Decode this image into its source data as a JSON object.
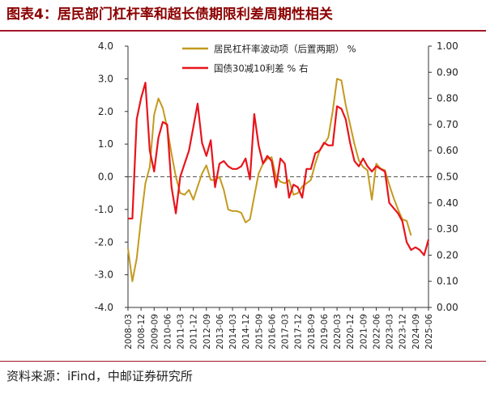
{
  "header": {
    "title": "图表4：居民部门杠杆率和超长债期限利差周期性相关"
  },
  "footer": {
    "source": "资料来源：iFind，中邮证券研究所"
  },
  "colors": {
    "gold": "#c49a1e",
    "red": "#e8141c",
    "brand": "#8b0000"
  },
  "chart_data": {
    "type": "line",
    "title": "图表4：居民部门杠杆率和超长债期限利差周期性相关",
    "xlabel": "",
    "ylabel": "",
    "x_tick_labels": [
      "2008-03",
      "2008-12",
      "2009-09",
      "2010-06",
      "2011-03",
      "2011-12",
      "2012-09",
      "2013-06",
      "2014-03",
      "2014-12",
      "2015-09",
      "2016-06",
      "2017-03",
      "2017-12",
      "2018-09",
      "2019-06",
      "2020-03",
      "2020-12",
      "2021-09",
      "2022-06",
      "2023-03",
      "2023-12",
      "2024-09",
      "2025-06"
    ],
    "x_start": "2008-03",
    "x_end": "2025-06",
    "left_axis": {
      "ylim": [
        -4.0,
        4.0
      ],
      "ticks": [
        "4.0",
        "3.0",
        "2.0",
        "1.0",
        "0.0",
        "-1.0",
        "-2.0",
        "-3.0",
        "-4.0"
      ]
    },
    "right_axis": {
      "ylim": [
        0.0,
        1.0
      ],
      "ticks": [
        "1.00",
        "0.90",
        "0.80",
        "0.70",
        "0.60",
        "0.50",
        "0.40",
        "0.30",
        "0.20",
        "0.10",
        "0.00"
      ]
    },
    "grid": false,
    "zero_line": "dashed",
    "legend_placement": "top-center",
    "series": [
      {
        "name": "居民杠杆率波动项（后置两期） %",
        "axis": "left",
        "color": "#c49a1e",
        "x": [
          "2008-03",
          "2008-06",
          "2008-09",
          "2008-12",
          "2009-03",
          "2009-06",
          "2009-09",
          "2009-12",
          "2010-03",
          "2010-06",
          "2010-09",
          "2010-12",
          "2011-03",
          "2011-06",
          "2011-09",
          "2011-12",
          "2012-03",
          "2012-06",
          "2012-09",
          "2012-12",
          "2013-03",
          "2013-06",
          "2013-09",
          "2013-12",
          "2014-03",
          "2014-06",
          "2014-09",
          "2014-12",
          "2015-03",
          "2015-06",
          "2015-09",
          "2015-12",
          "2016-03",
          "2016-06",
          "2016-09",
          "2016-12",
          "2017-03",
          "2017-06",
          "2017-09",
          "2017-12",
          "2018-03",
          "2018-06",
          "2018-09",
          "2018-12",
          "2019-03",
          "2019-06",
          "2019-09",
          "2019-12",
          "2020-03",
          "2020-06",
          "2020-09",
          "2020-12",
          "2021-03",
          "2021-06",
          "2021-09",
          "2021-12",
          "2022-03",
          "2022-06",
          "2022-09",
          "2022-12",
          "2023-03",
          "2023-06",
          "2023-09",
          "2023-12",
          "2024-03",
          "2024-06",
          "2024-09",
          "2024-12"
        ],
        "y": [
          -2.2,
          -3.2,
          -2.5,
          -1.3,
          -0.2,
          0.3,
          1.9,
          2.4,
          2.1,
          1.5,
          0.7,
          0.0,
          -0.5,
          -0.55,
          -0.4,
          -0.7,
          -0.3,
          0.1,
          0.35,
          -0.1,
          -0.1,
          0.0,
          -0.4,
          -1.0,
          -1.05,
          -1.05,
          -1.1,
          -1.4,
          -1.3,
          -0.6,
          0.1,
          0.4,
          0.55,
          0.6,
          0.0,
          -0.15,
          -0.2,
          -0.1,
          -0.55,
          -0.5,
          -0.3,
          -0.2,
          -0.1,
          0.4,
          0.8,
          1.0,
          1.2,
          2.0,
          3.0,
          2.95,
          2.2,
          1.6,
          1.0,
          0.5,
          0.3,
          0.2,
          -0.7,
          0.4,
          0.25,
          0.2,
          -0.25,
          -0.65,
          -1.0,
          -1.3,
          -1.35,
          -1.8,
          null,
          null
        ]
      },
      {
        "name": "国债30减10利差 % 右",
        "axis": "right",
        "color": "#e8141c",
        "x": [
          "2008-03",
          "2008-06",
          "2008-09",
          "2008-12",
          "2009-03",
          "2009-06",
          "2009-09",
          "2009-12",
          "2010-03",
          "2010-06",
          "2010-09",
          "2010-12",
          "2011-03",
          "2011-06",
          "2011-09",
          "2011-12",
          "2012-03",
          "2012-06",
          "2012-09",
          "2012-12",
          "2013-03",
          "2013-06",
          "2013-09",
          "2013-12",
          "2014-03",
          "2014-06",
          "2014-09",
          "2014-12",
          "2015-03",
          "2015-06",
          "2015-09",
          "2015-12",
          "2016-03",
          "2016-06",
          "2016-09",
          "2016-12",
          "2017-03",
          "2017-06",
          "2017-09",
          "2017-12",
          "2018-03",
          "2018-06",
          "2018-09",
          "2018-12",
          "2019-03",
          "2019-06",
          "2019-09",
          "2019-12",
          "2020-03",
          "2020-06",
          "2020-09",
          "2020-12",
          "2021-03",
          "2021-06",
          "2021-09",
          "2021-12",
          "2022-03",
          "2022-06",
          "2022-09",
          "2022-12",
          "2023-03",
          "2023-06",
          "2023-09",
          "2023-12",
          "2024-03",
          "2024-06",
          "2024-09",
          "2024-12",
          "2025-03",
          "2025-06"
        ],
        "y": [
          0.34,
          0.34,
          0.72,
          0.8,
          0.86,
          0.6,
          0.52,
          0.65,
          0.71,
          0.7,
          0.46,
          0.36,
          0.5,
          0.55,
          0.6,
          0.69,
          0.78,
          0.63,
          0.58,
          0.64,
          0.46,
          0.55,
          0.56,
          0.54,
          0.53,
          0.53,
          0.54,
          0.57,
          0.49,
          0.74,
          0.62,
          0.55,
          0.58,
          0.56,
          0.46,
          0.57,
          0.55,
          0.42,
          0.47,
          0.46,
          0.42,
          0.53,
          0.53,
          0.59,
          0.6,
          0.63,
          0.62,
          0.62,
          0.77,
          0.76,
          0.72,
          0.63,
          0.56,
          0.54,
          0.57,
          0.54,
          0.52,
          0.54,
          0.53,
          0.52,
          0.4,
          0.38,
          0.36,
          0.33,
          0.25,
          0.22,
          0.23,
          0.22,
          0.2,
          0.26
        ]
      }
    ]
  }
}
